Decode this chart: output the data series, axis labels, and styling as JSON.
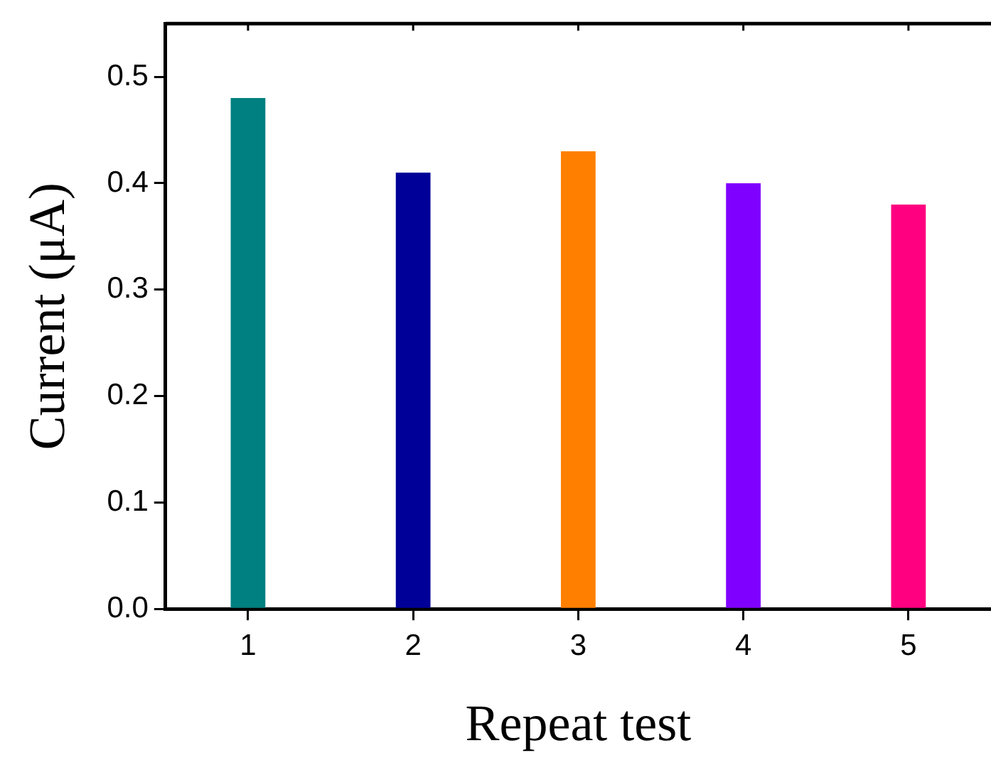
{
  "chart_data": {
    "type": "bar",
    "xlabel": "Repeat test",
    "ylabel": "Current (μA)",
    "categories": [
      "1",
      "2",
      "3",
      "4",
      "5"
    ],
    "values": [
      0.48,
      0.41,
      0.43,
      0.4,
      0.38
    ],
    "colors": [
      "#008080",
      "#000099",
      "#ff8000",
      "#8000ff",
      "#ff0080"
    ],
    "ylim": [
      0,
      0.55
    ],
    "yticks": [
      {
        "value": 0,
        "label": "0.0"
      },
      0.1,
      0.2,
      0.3,
      0.4,
      0.5
    ],
    "grid": false,
    "legend": false
  }
}
